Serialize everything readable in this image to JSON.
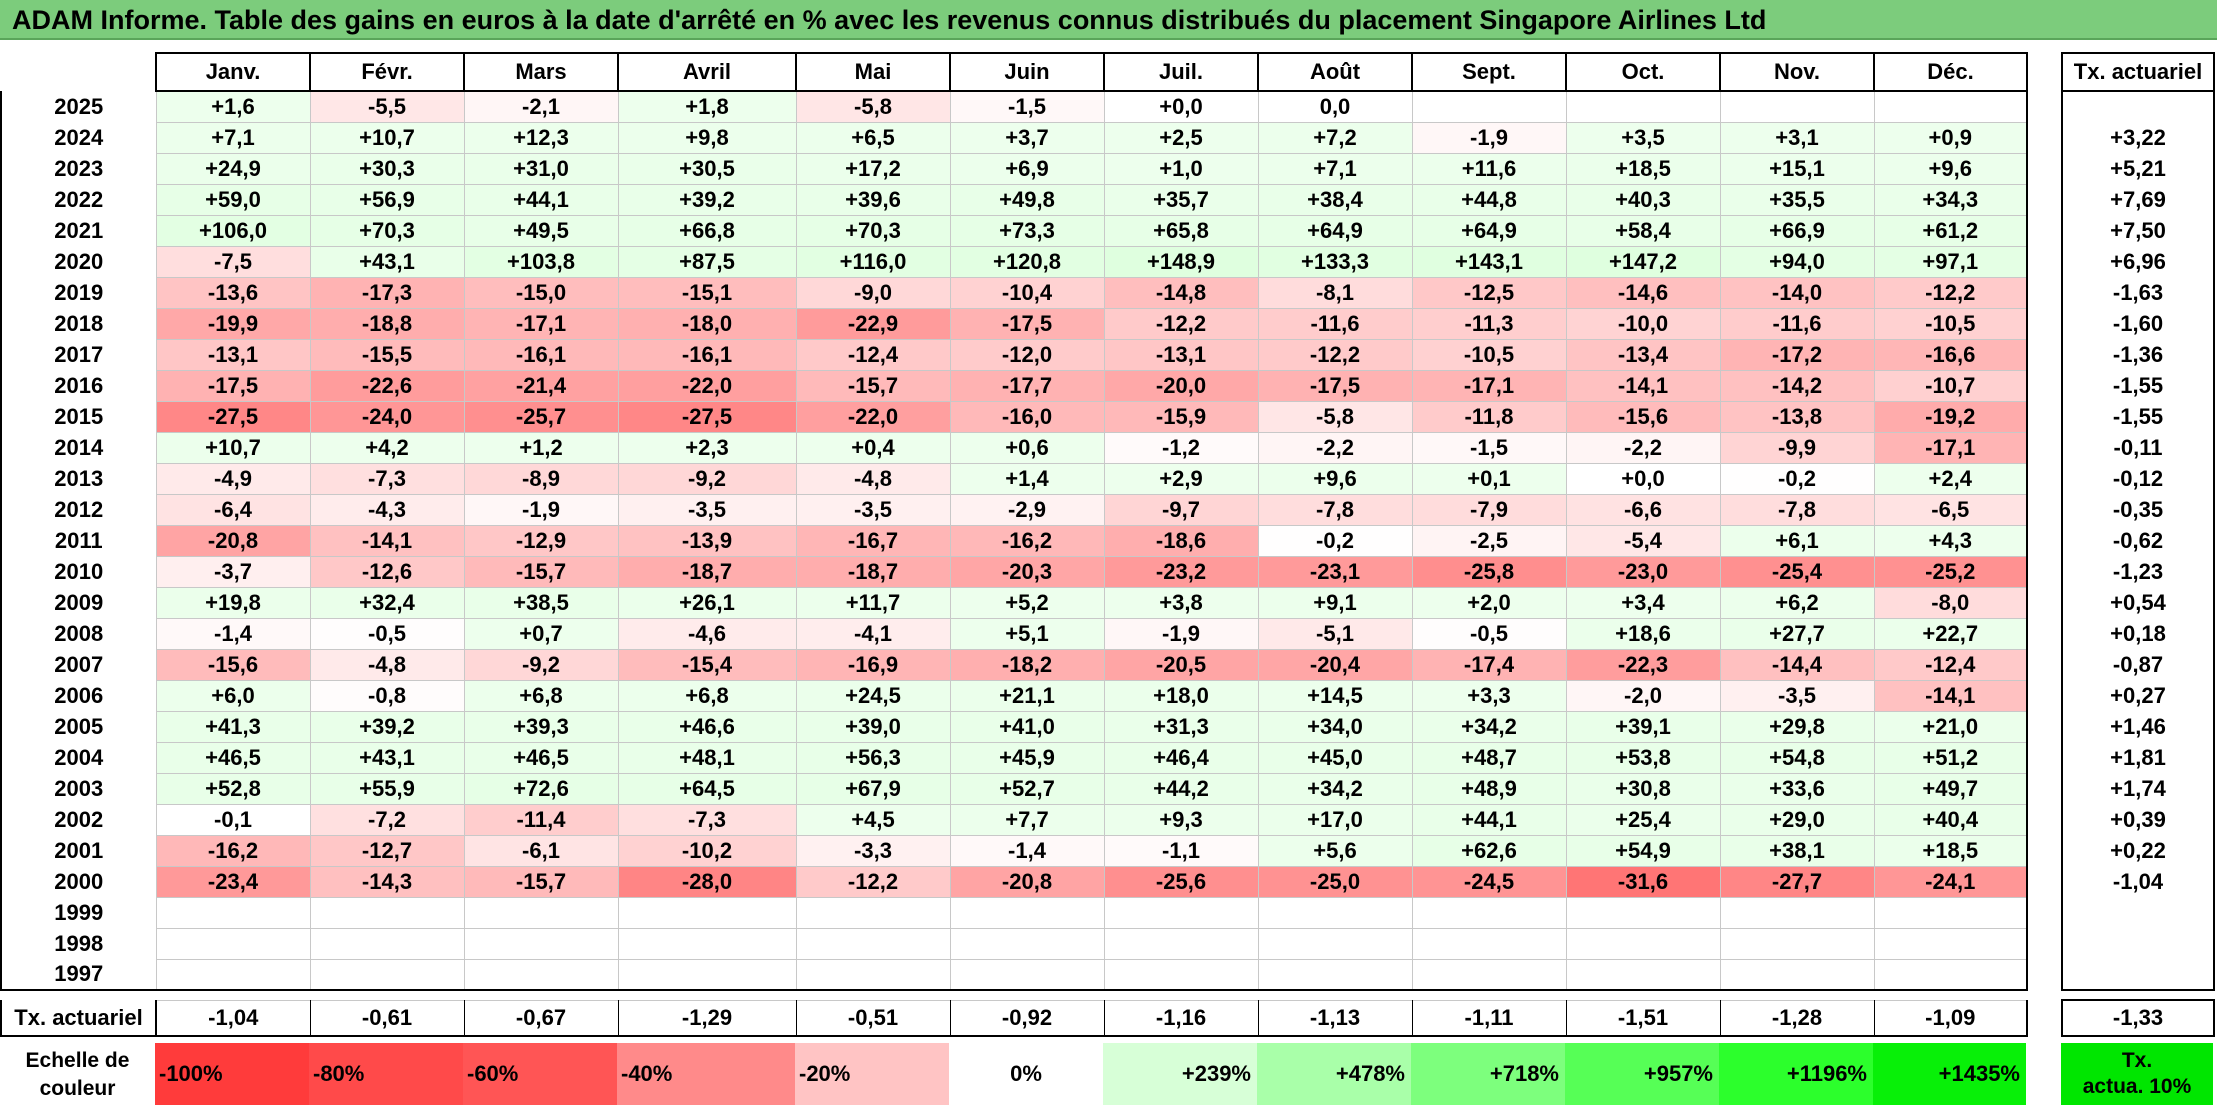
{
  "title": "ADAM Informe. Table des gains en euros à la date d'arrêté en % avec les revenus connus distribués du placement Singapore Airlines Ltd",
  "months": [
    "Janv.",
    "Févr.",
    "Mars",
    "Avril",
    "Mai",
    "Juin",
    "Juil.",
    "Août",
    "Sept.",
    "Oct.",
    "Nov.",
    "Déc."
  ],
  "tx_header": "Tx. actuariel",
  "rows": [
    {
      "year": "2025",
      "cells": [
        "+1,6",
        "-5,5",
        "-2,1",
        "+1,8",
        "-5,8",
        "-1,5",
        "+0,0",
        "0,0",
        "",
        "",
        "",
        ""
      ],
      "tx": ""
    },
    {
      "year": "2024",
      "cells": [
        "+7,1",
        "+10,7",
        "+12,3",
        "+9,8",
        "+6,5",
        "+3,7",
        "+2,5",
        "+7,2",
        "-1,9",
        "+3,5",
        "+3,1",
        "+0,9"
      ],
      "tx": "+3,22"
    },
    {
      "year": "2023",
      "cells": [
        "+24,9",
        "+30,3",
        "+31,0",
        "+30,5",
        "+17,2",
        "+6,9",
        "+1,0",
        "+7,1",
        "+11,6",
        "+18,5",
        "+15,1",
        "+9,6"
      ],
      "tx": "+5,21"
    },
    {
      "year": "2022",
      "cells": [
        "+59,0",
        "+56,9",
        "+44,1",
        "+39,2",
        "+39,6",
        "+49,8",
        "+35,7",
        "+38,4",
        "+44,8",
        "+40,3",
        "+35,5",
        "+34,3"
      ],
      "tx": "+7,69"
    },
    {
      "year": "2021",
      "cells": [
        "+106,0",
        "+70,3",
        "+49,5",
        "+66,8",
        "+70,3",
        "+73,3",
        "+65,8",
        "+64,9",
        "+64,9",
        "+58,4",
        "+66,9",
        "+61,2"
      ],
      "tx": "+7,50"
    },
    {
      "year": "2020",
      "cells": [
        "-7,5",
        "+43,1",
        "+103,8",
        "+87,5",
        "+116,0",
        "+120,8",
        "+148,9",
        "+133,3",
        "+143,1",
        "+147,2",
        "+94,0",
        "+97,1"
      ],
      "tx": "+6,96"
    },
    {
      "year": "2019",
      "cells": [
        "-13,6",
        "-17,3",
        "-15,0",
        "-15,1",
        "-9,0",
        "-10,4",
        "-14,8",
        "-8,1",
        "-12,5",
        "-14,6",
        "-14,0",
        "-12,2"
      ],
      "tx": "-1,63"
    },
    {
      "year": "2018",
      "cells": [
        "-19,9",
        "-18,8",
        "-17,1",
        "-18,0",
        "-22,9",
        "-17,5",
        "-12,2",
        "-11,6",
        "-11,3",
        "-10,0",
        "-11,6",
        "-10,5"
      ],
      "tx": "-1,60"
    },
    {
      "year": "2017",
      "cells": [
        "-13,1",
        "-15,5",
        "-16,1",
        "-16,1",
        "-12,4",
        "-12,0",
        "-13,1",
        "-12,2",
        "-10,5",
        "-13,4",
        "-17,2",
        "-16,6"
      ],
      "tx": "-1,36"
    },
    {
      "year": "2016",
      "cells": [
        "-17,5",
        "-22,6",
        "-21,4",
        "-22,0",
        "-15,7",
        "-17,7",
        "-20,0",
        "-17,5",
        "-17,1",
        "-14,1",
        "-14,2",
        "-10,7"
      ],
      "tx": "-1,55"
    },
    {
      "year": "2015",
      "cells": [
        "-27,5",
        "-24,0",
        "-25,7",
        "-27,5",
        "-22,0",
        "-16,0",
        "-15,9",
        "-5,8",
        "-11,8",
        "-15,6",
        "-13,8",
        "-19,2"
      ],
      "tx": "-1,55"
    },
    {
      "year": "2014",
      "cells": [
        "+10,7",
        "+4,2",
        "+1,2",
        "+2,3",
        "+0,4",
        "+0,6",
        "-1,2",
        "-2,2",
        "-1,5",
        "-2,2",
        "-9,9",
        "-17,1"
      ],
      "tx": "-0,11"
    },
    {
      "year": "2013",
      "cells": [
        "-4,9",
        "-7,3",
        "-8,9",
        "-9,2",
        "-4,8",
        "+1,4",
        "+2,9",
        "+9,6",
        "+0,1",
        "+0,0",
        "-0,2",
        "+2,4"
      ],
      "tx": "-0,12"
    },
    {
      "year": "2012",
      "cells": [
        "-6,4",
        "-4,3",
        "-1,9",
        "-3,5",
        "-3,5",
        "-2,9",
        "-9,7",
        "-7,8",
        "-7,9",
        "-6,6",
        "-7,8",
        "-6,5"
      ],
      "tx": "-0,35"
    },
    {
      "year": "2011",
      "cells": [
        "-20,8",
        "-14,1",
        "-12,9",
        "-13,9",
        "-16,7",
        "-16,2",
        "-18,6",
        "-0,2",
        "-2,5",
        "-5,4",
        "+6,1",
        "+4,3"
      ],
      "tx": "-0,62"
    },
    {
      "year": "2010",
      "cells": [
        "-3,7",
        "-12,6",
        "-15,7",
        "-18,7",
        "-18,7",
        "-20,3",
        "-23,2",
        "-23,1",
        "-25,8",
        "-23,0",
        "-25,4",
        "-25,2"
      ],
      "tx": "-1,23"
    },
    {
      "year": "2009",
      "cells": [
        "+19,8",
        "+32,4",
        "+38,5",
        "+26,1",
        "+11,7",
        "+5,2",
        "+3,8",
        "+9,1",
        "+2,0",
        "+3,4",
        "+6,2",
        "-8,0"
      ],
      "tx": "+0,54"
    },
    {
      "year": "2008",
      "cells": [
        "-1,4",
        "-0,5",
        "+0,7",
        "-4,6",
        "-4,1",
        "+5,1",
        "-1,9",
        "-5,1",
        "-0,5",
        "+18,6",
        "+27,7",
        "+22,7"
      ],
      "tx": "+0,18"
    },
    {
      "year": "2007",
      "cells": [
        "-15,6",
        "-4,8",
        "-9,2",
        "-15,4",
        "-16,9",
        "-18,2",
        "-20,5",
        "-20,4",
        "-17,4",
        "-22,3",
        "-14,4",
        "-12,4"
      ],
      "tx": "-0,87"
    },
    {
      "year": "2006",
      "cells": [
        "+6,0",
        "-0,8",
        "+6,8",
        "+6,8",
        "+24,5",
        "+21,1",
        "+18,0",
        "+14,5",
        "+3,3",
        "-2,0",
        "-3,5",
        "-14,1"
      ],
      "tx": "+0,27"
    },
    {
      "year": "2005",
      "cells": [
        "+41,3",
        "+39,2",
        "+39,3",
        "+46,6",
        "+39,0",
        "+41,0",
        "+31,3",
        "+34,0",
        "+34,2",
        "+39,1",
        "+29,8",
        "+21,0"
      ],
      "tx": "+1,46"
    },
    {
      "year": "2004",
      "cells": [
        "+46,5",
        "+43,1",
        "+46,5",
        "+48,1",
        "+56,3",
        "+45,9",
        "+46,4",
        "+45,0",
        "+48,7",
        "+53,8",
        "+54,8",
        "+51,2"
      ],
      "tx": "+1,81"
    },
    {
      "year": "2003",
      "cells": [
        "+52,8",
        "+55,9",
        "+72,6",
        "+64,5",
        "+67,9",
        "+52,7",
        "+44,2",
        "+34,2",
        "+48,9",
        "+30,8",
        "+33,6",
        "+49,7"
      ],
      "tx": "+1,74"
    },
    {
      "year": "2002",
      "cells": [
        "-0,1",
        "-7,2",
        "-11,4",
        "-7,3",
        "+4,5",
        "+7,7",
        "+9,3",
        "+17,0",
        "+44,1",
        "+25,4",
        "+29,0",
        "+40,4"
      ],
      "tx": "+0,39"
    },
    {
      "year": "2001",
      "cells": [
        "-16,2",
        "-12,7",
        "-6,1",
        "-10,2",
        "-3,3",
        "-1,4",
        "-1,1",
        "+5,6",
        "+62,6",
        "+54,9",
        "+38,1",
        "+18,5"
      ],
      "tx": "+0,22"
    },
    {
      "year": "2000",
      "cells": [
        "-23,4",
        "-14,3",
        "-15,7",
        "-28,0",
        "-12,2",
        "-20,8",
        "-25,6",
        "-25,0",
        "-24,5",
        "-31,6",
        "-27,7",
        "-24,1"
      ],
      "tx": "-1,04"
    },
    {
      "year": "1999",
      "cells": [
        "",
        "",
        "",
        "",
        "",
        "",
        "",
        "",
        "",
        "",
        "",
        ""
      ],
      "tx": ""
    },
    {
      "year": "1998",
      "cells": [
        "",
        "",
        "",
        "",
        "",
        "",
        "",
        "",
        "",
        "",
        "",
        ""
      ],
      "tx": ""
    },
    {
      "year": "1997",
      "cells": [
        "",
        "",
        "",
        "",
        "",
        "",
        "",
        "",
        "",
        "",
        "",
        ""
      ],
      "tx": ""
    }
  ],
  "avg_row": {
    "label": "Tx. actuariel",
    "cells": [
      "-1,04",
      "-0,61",
      "-0,67",
      "-1,29",
      "-0,51",
      "-0,92",
      "-1,16",
      "-1,13",
      "-1,11",
      "-1,51",
      "-1,28",
      "-1,09"
    ],
    "tx": "-1,33"
  },
  "scale": {
    "label_line1": "Echelle de",
    "label_line2": "couleur",
    "items": [
      {
        "label": "-100%",
        "color": "#ff3b3b",
        "kind": "neg"
      },
      {
        "label": "-80%",
        "color": "#ff4a4a",
        "kind": "neg"
      },
      {
        "label": "-60%",
        "color": "#ff5555",
        "kind": "neg"
      },
      {
        "label": "-40%",
        "color": "#ff8a8a",
        "kind": "neg"
      },
      {
        "label": "-20%",
        "color": "#ffc4c4",
        "kind": "neg"
      },
      {
        "label": "0%",
        "color": "#ffffff",
        "kind": "zero"
      },
      {
        "label": "+239%",
        "color": "#d7ffd7",
        "kind": "pos"
      },
      {
        "label": "+478%",
        "color": "#a9ffa9",
        "kind": "pos"
      },
      {
        "label": "+718%",
        "color": "#7dff7d",
        "kind": "pos"
      },
      {
        "label": "+957%",
        "color": "#56ff56",
        "kind": "pos"
      },
      {
        "label": "+1196%",
        "color": "#2cff2c",
        "kind": "pos"
      },
      {
        "label": "+1435%",
        "color": "#08f008",
        "kind": "pos"
      }
    ],
    "tx_line1": "Tx.",
    "tx_line2": "actua. 10%"
  }
}
